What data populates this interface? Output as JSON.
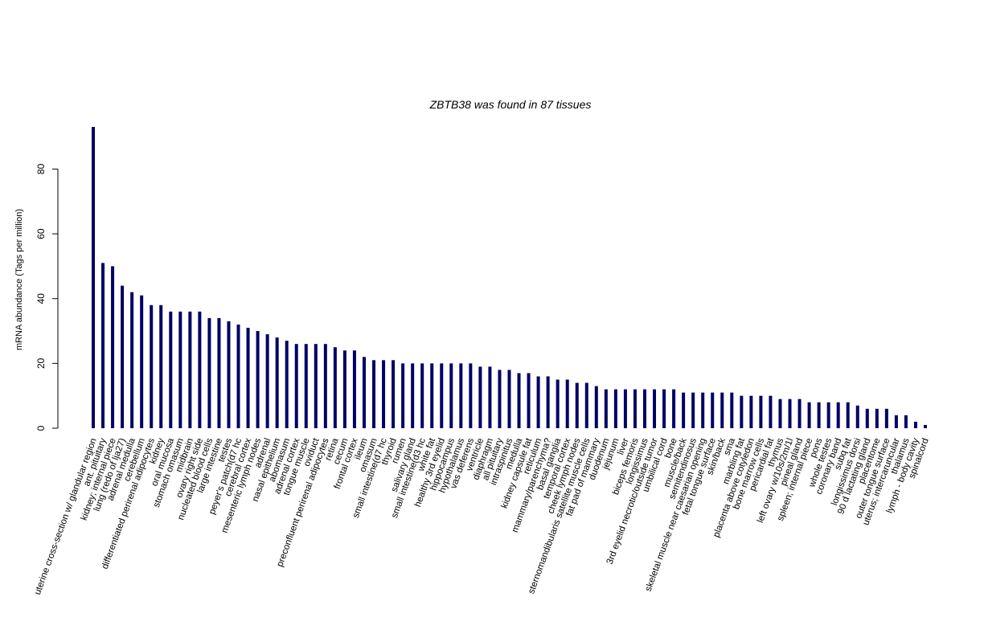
{
  "chart_data": {
    "type": "bar",
    "title": "ZBTB38  was found in  87  tissues",
    "ylabel": "mRNA abundance (Tags per million)",
    "xlabel": "",
    "ylim": [
      0,
      93
    ],
    "yticks": [
      0,
      20,
      40,
      60,
      80
    ],
    "bar_color": "#000066",
    "grid": false,
    "categories": [
      "uterine cross-section w/ glandular region",
      "ant. pituitary",
      "kidney; internal piece",
      "lung (redo of lja27)",
      "adrenal medulla",
      "cerebellum",
      "differentiated perirenal adipocytes",
      "kidney",
      "oral mucosa",
      "stomach omasum",
      "midbrain",
      "ovary right side",
      "nucleated blood cells",
      "large intestine",
      "testes",
      "peyer's patch(d7 hc",
      "cerebral cortex",
      "mesenteric lymph nodes",
      "adrenal",
      "nasal epithelium",
      "abomasum",
      "adrenal cortex",
      "tongue muscle",
      "oviduct",
      "preconfluent perirenal adipocytes",
      "retina",
      "cecum",
      "frontal cortex",
      "ileum",
      "omasum",
      "small intestine(d7 hc",
      "thyroid",
      "rumen",
      "salivary gland",
      "small intestine(d3 hc",
      "white fat",
      "healthy 3rd eyelid",
      "hippocampus",
      "hypothalamus",
      "vas deferens",
      "ventricle",
      "diaphragm",
      "all pituitary",
      "intraspinitus",
      "medulla",
      "kidney capsule fat",
      "reticulum",
      "mammary/parenchyma?",
      "basal ganglia",
      "temporal cortex",
      "cheek lymph nodes",
      "sternomandibularis satellite muscle cells",
      "fat pad of mammary",
      "duodenum",
      "jejunum",
      "liver",
      "biceps femoris",
      "longissimus",
      "3rd eyelid necrotic/outside tumor",
      "umbilical cord",
      "bone",
      "muscle/back",
      "semitendinosus",
      "skeletal muscle near caesarian opening",
      "fetal tongue surface",
      "skin/back",
      "sma",
      "marbling fat",
      "placenta above cotyledon",
      "bone marrow cells",
      "pericardial fat",
      "thymus",
      "left ovary w/10s/2m/1l",
      "pineal gland",
      "spleen; internal piece",
      "pons",
      "whole testes",
      "coronary band",
      "subq fat",
      "longissimus dorsi",
      "90 d lactating gland",
      "placentome",
      "outer tongue surface",
      "uterus; intercaruncular",
      "thalamus",
      "lymph - body cavity",
      "spinalcord"
    ],
    "values": [
      93,
      51,
      50,
      44,
      42,
      41,
      38,
      38,
      36,
      36,
      36,
      36,
      34,
      34,
      33,
      32,
      31,
      30,
      29,
      28,
      27,
      26,
      26,
      26,
      26,
      25,
      24,
      24,
      22,
      21,
      21,
      21,
      20,
      20,
      20,
      20,
      20,
      20,
      20,
      20,
      19,
      19,
      18,
      18,
      17,
      17,
      16,
      16,
      15,
      15,
      14,
      14,
      13,
      12,
      12,
      12,
      12,
      12,
      12,
      12,
      12,
      11,
      11,
      11,
      11,
      11,
      11,
      10,
      10,
      10,
      10,
      9,
      9,
      9,
      8,
      8,
      8,
      8,
      8,
      7,
      6,
      6,
      6,
      4,
      4,
      2,
      1
    ]
  }
}
